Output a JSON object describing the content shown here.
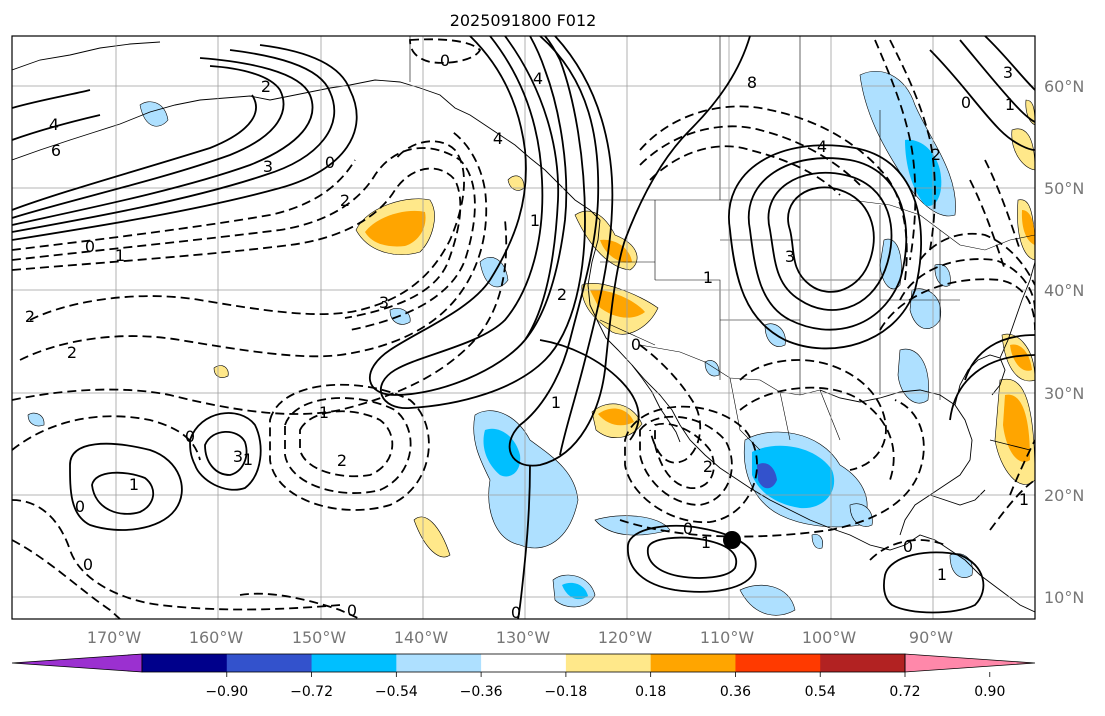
{
  "title": "2025091800 F012",
  "lon_ticks": [
    "170°W",
    "160°W",
    "150°W",
    "140°W",
    "130°W",
    "120°W",
    "110°W",
    "100°W",
    "90°W"
  ],
  "lat_ticks": [
    "60°N",
    "50°N",
    "40°N",
    "30°N",
    "20°N",
    "10°N"
  ],
  "colorbar": {
    "colors": [
      "#9b30d0",
      "#00008b",
      "#3352cc",
      "#00bfff",
      "#aee0ff",
      "#ffffff",
      "#ffe88a",
      "#ffa500",
      "#ff3a00",
      "#b22222",
      "#ff88aa"
    ],
    "tick_labels": [
      "−0.90",
      "−0.72",
      "−0.54",
      "−0.36",
      "−0.18",
      "0.18",
      "0.36",
      "0.54",
      "0.72",
      "0.90"
    ]
  },
  "contour_labels": [
    {
      "text": "2"
    },
    {
      "text": "4"
    },
    {
      "text": "6"
    },
    {
      "text": "3"
    },
    {
      "text": "2"
    },
    {
      "text": "0"
    },
    {
      "text": "0"
    },
    {
      "text": "1"
    },
    {
      "text": "2"
    },
    {
      "text": "3"
    },
    {
      "text": "2"
    },
    {
      "text": "1"
    },
    {
      "text": "2"
    },
    {
      "text": "0"
    },
    {
      "text": "1"
    },
    {
      "text": "1"
    },
    {
      "text": "0"
    },
    {
      "text": "0"
    },
    {
      "text": "0"
    },
    {
      "text": "4"
    },
    {
      "text": "4"
    },
    {
      "text": "1"
    },
    {
      "text": "2"
    },
    {
      "text": "1"
    },
    {
      "text": "0"
    },
    {
      "text": "8"
    },
    {
      "text": "4"
    },
    {
      "text": "3"
    },
    {
      "text": "2"
    },
    {
      "text": "0"
    },
    {
      "text": "2"
    },
    {
      "text": "1"
    },
    {
      "text": "0"
    },
    {
      "text": "1"
    },
    {
      "text": "0"
    },
    {
      "text": "1"
    },
    {
      "text": "3"
    },
    {
      "text": "1"
    },
    {
      "text": "0"
    },
    {
      "text": "3"
    },
    {
      "text": "0"
    },
    {
      "text": "1"
    }
  ]
}
